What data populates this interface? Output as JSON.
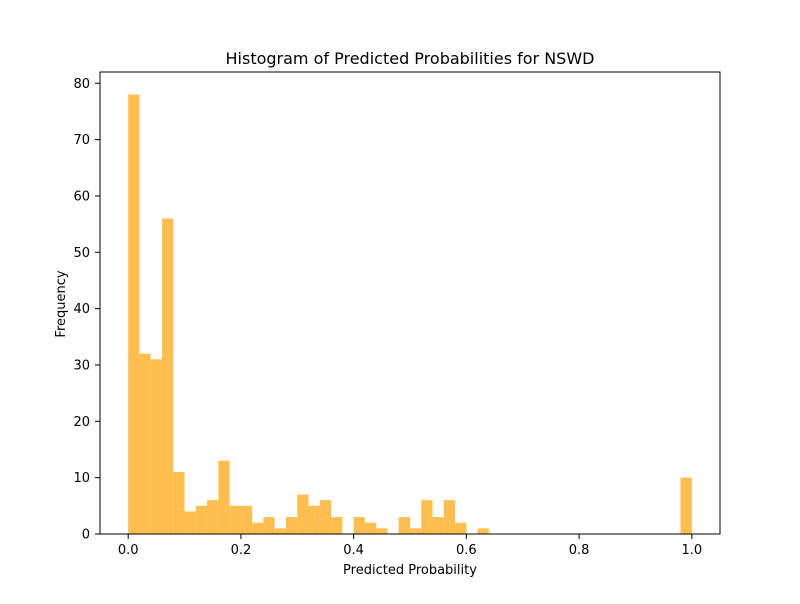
{
  "chart_data": {
    "type": "bar",
    "title": "Histogram of Predicted Probabilities for NSWD",
    "xlabel": "Predicted Probability",
    "ylabel": "Frequency",
    "xlim": [
      -0.05,
      1.05
    ],
    "ylim": [
      0,
      82
    ],
    "xticks": [
      0.0,
      0.2,
      0.4,
      0.6,
      0.8,
      1.0
    ],
    "xtick_labels": [
      "0.0",
      "0.2",
      "0.4",
      "0.6",
      "0.8",
      "1.0"
    ],
    "yticks": [
      0,
      10,
      20,
      30,
      40,
      50,
      60,
      70,
      80
    ],
    "ytick_labels": [
      "0",
      "10",
      "20",
      "30",
      "40",
      "50",
      "60",
      "70",
      "80"
    ],
    "bin_edges": [
      0.0,
      0.02,
      0.04,
      0.06,
      0.08,
      0.1,
      0.12,
      0.14,
      0.16,
      0.18,
      0.2,
      0.22,
      0.24,
      0.26,
      0.28,
      0.3,
      0.32,
      0.34,
      0.36,
      0.38,
      0.4,
      0.42,
      0.44,
      0.46,
      0.48,
      0.5,
      0.52,
      0.54,
      0.56,
      0.58,
      0.6,
      0.62,
      0.64,
      0.66,
      0.68,
      0.7,
      0.72,
      0.74,
      0.76,
      0.78,
      0.8,
      0.82,
      0.84,
      0.86,
      0.88,
      0.9,
      0.92,
      0.94,
      0.96,
      0.98,
      1.0
    ],
    "values": [
      78,
      32,
      31,
      56,
      11,
      4,
      5,
      6,
      13,
      5,
      5,
      2,
      3,
      1,
      3,
      7,
      5,
      6,
      3,
      0,
      3,
      2,
      1,
      0,
      3,
      1,
      6,
      3,
      6,
      2,
      0,
      1,
      0,
      0,
      0,
      0,
      0,
      0,
      0,
      0,
      0,
      0,
      0,
      0,
      0,
      0,
      0,
      0,
      0,
      10
    ],
    "color": "#ffbe4d",
    "grid": false,
    "legend": "none"
  }
}
